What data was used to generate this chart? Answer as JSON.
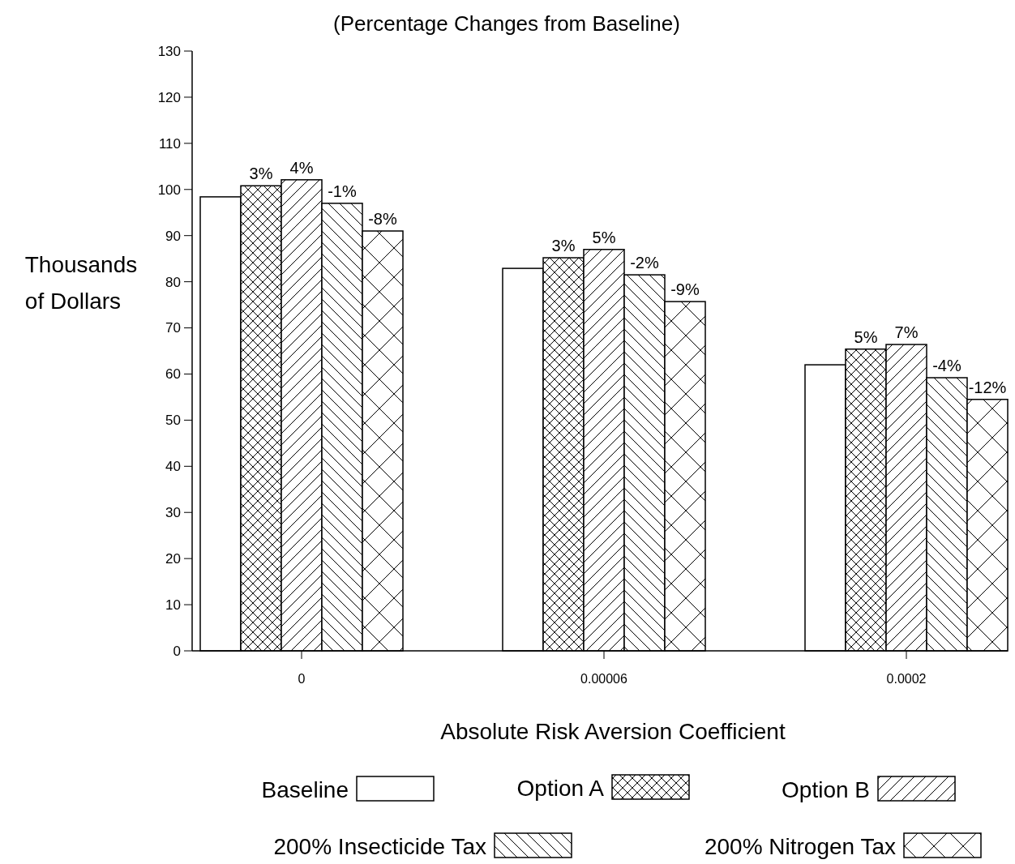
{
  "chart_data": {
    "type": "bar",
    "title": "(Percentage Changes from Baseline)",
    "xlabel": "Absolute Risk Aversion Coefficient",
    "ylabel": "Thousands of Dollars",
    "categories": [
      "0",
      "0.00006",
      "0.0002"
    ],
    "series": [
      {
        "name": "Baseline",
        "color": "#ffffff",
        "values": [
          98.4,
          82.9,
          62.0
        ]
      },
      {
        "name": "Option A",
        "color": "#000000",
        "values": [
          100.8,
          85.2,
          65.4
        ]
      },
      {
        "name": "Option B",
        "color": "#000000",
        "values": [
          102.1,
          87.0,
          66.4
        ]
      },
      {
        "name": "200% Insecticide Tax",
        "color": "#000000",
        "values": [
          97.0,
          81.5,
          59.2
        ]
      },
      {
        "name": "200% Nitrogen Tax",
        "color": "#000000",
        "values": [
          91.0,
          75.7,
          54.5
        ]
      }
    ],
    "annotations": [
      "3%",
      "4%",
      "-1%",
      "-8%",
      "3%",
      "5%",
      "-2%",
      "-9%",
      "5%",
      "7%",
      "-4%",
      "-12%"
    ],
    "ylim": [
      0,
      130
    ],
    "yticks": [
      0,
      10,
      20,
      30,
      40,
      50,
      60,
      70,
      80,
      90,
      100,
      110,
      120,
      130
    ],
    "grid": false,
    "legend": "bottom"
  }
}
